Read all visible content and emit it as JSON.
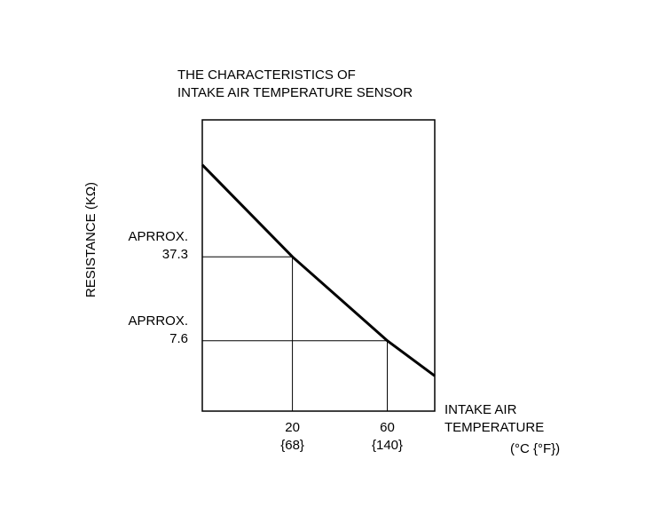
{
  "chart_data": {
    "type": "line",
    "title": "THE CHARACTERISTICS OF\nINTAKE AIR TEMPERATURE SENSOR",
    "y_label": "RESISTANCE (KΩ)",
    "x_label": "INTAKE AIR\nTEMPERATURE",
    "x_unit": "(°C {°F})",
    "x": [
      -18,
      20,
      60,
      80
    ],
    "series": [
      {
        "name": "Resistance",
        "color": "#000000",
        "values": [
          213,
          37.3,
          7.6,
          3.9
        ]
      }
    ],
    "xlim": [
      -18,
      80
    ],
    "ylim": [
      2,
      500
    ],
    "yscale": "log",
    "xticks": [
      {
        "value": 20,
        "label": "20\n{68}"
      },
      {
        "value": 60,
        "label": "60\n{140}"
      }
    ],
    "yticks": [
      {
        "value": 37.3,
        "label": "APRROX.\n37.3"
      },
      {
        "value": 7.6,
        "label": "APRROX.\n7.6"
      }
    ]
  }
}
